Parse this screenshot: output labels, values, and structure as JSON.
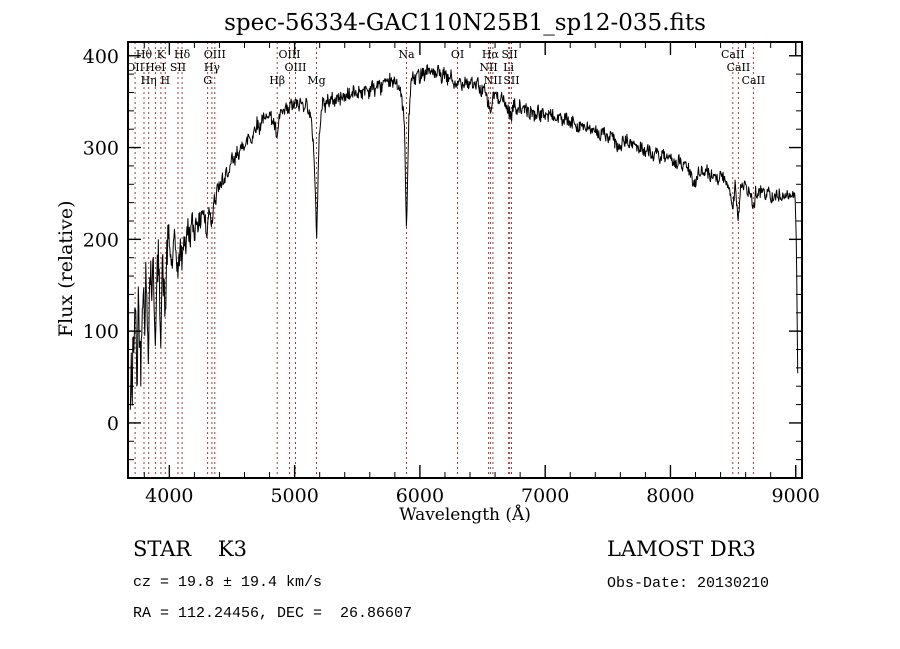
{
  "chart_data": {
    "type": "line",
    "title": "spec-56334-GAC110N25B1_sp12-035.fits",
    "xlabel": "Wavelength (Å)",
    "ylabel": "Flux (relative)",
    "xlim": [
      3670,
      9050
    ],
    "ylim": [
      -60,
      415
    ],
    "xticks": [
      4000,
      5000,
      6000,
      7000,
      8000,
      9000
    ],
    "yticks": [
      0,
      100,
      200,
      300,
      400
    ],
    "x_minor_step": 200,
    "y_minor_step": 20,
    "grid": false,
    "legend": "none",
    "spectrum_color": "#000000",
    "marker_line_color": "#a03c3c",
    "marker_label_color": "#8b2222",
    "render_noise": {
      "seed": 42,
      "step": 4,
      "regions": [
        [
          3670,
          4000,
          22
        ],
        [
          4000,
          4300,
          13
        ],
        [
          4300,
          4700,
          9
        ],
        [
          4700,
          8900,
          7
        ],
        [
          8900,
          9060,
          4
        ]
      ]
    },
    "spectral_lines": [
      {
        "label": "OII",
        "wavelength": 3727,
        "row": 1
      },
      {
        "label": "Hθ",
        "wavelength": 3798,
        "row": 0
      },
      {
        "label": "Hη",
        "wavelength": 3835,
        "row": 2
      },
      {
        "label": "HeI",
        "wavelength": 3889,
        "row": 1
      },
      {
        "label": "K",
        "wavelength": 3933,
        "row": 0
      },
      {
        "label": "H",
        "wavelength": 3968,
        "row": 2
      },
      {
        "label": "SII",
        "wavelength": 4069,
        "row": 1
      },
      {
        "label": "Hδ",
        "wavelength": 4102,
        "row": 0
      },
      {
        "label": "G",
        "wavelength": 4305,
        "row": 2
      },
      {
        "label": "Hγ",
        "wavelength": 4340,
        "row": 1
      },
      {
        "label": "OIII",
        "wavelength": 4363,
        "row": 0
      },
      {
        "label": "Hβ",
        "wavelength": 4861,
        "row": 2
      },
      {
        "label": "OIII",
        "wavelength": 4959,
        "row": 0
      },
      {
        "label": "OIII",
        "wavelength": 5007,
        "row": 1
      },
      {
        "label": "Mg",
        "wavelength": 5175,
        "row": 2
      },
      {
        "label": "Na",
        "wavelength": 5893,
        "row": 0
      },
      {
        "label": "OI",
        "wavelength": 6300,
        "row": 0
      },
      {
        "label": "NII",
        "wavelength": 6548,
        "row": 1
      },
      {
        "label": "Hα",
        "wavelength": 6563,
        "row": 0
      },
      {
        "label": "NII",
        "wavelength": 6583,
        "row": 2
      },
      {
        "label": "Li",
        "wavelength": 6708,
        "row": 1
      },
      {
        "label": "SII",
        "wavelength": 6716,
        "row": 0
      },
      {
        "label": "SII",
        "wavelength": 6731,
        "row": 2
      },
      {
        "label": "CaII",
        "wavelength": 8498,
        "row": 0
      },
      {
        "label": "CaII",
        "wavelength": 8542,
        "row": 1
      },
      {
        "label": "CaII",
        "wavelength": 8662,
        "row": 2
      }
    ],
    "spectrum": [
      [
        3688,
        10
      ],
      [
        3695,
        70
      ],
      [
        3702,
        5
      ],
      [
        3710,
        120
      ],
      [
        3718,
        55
      ],
      [
        3726,
        150
      ],
      [
        3734,
        90
      ],
      [
        3742,
        35
      ],
      [
        3752,
        140
      ],
      [
        3762,
        95
      ],
      [
        3772,
        60
      ],
      [
        3782,
        130
      ],
      [
        3792,
        155
      ],
      [
        3802,
        105
      ],
      [
        3812,
        160
      ],
      [
        3822,
        120
      ],
      [
        3832,
        85
      ],
      [
        3842,
        150
      ],
      [
        3852,
        170
      ],
      [
        3862,
        135
      ],
      [
        3872,
        180
      ],
      [
        3882,
        115
      ],
      [
        3892,
        95
      ],
      [
        3902,
        160
      ],
      [
        3912,
        180
      ],
      [
        3922,
        140
      ],
      [
        3933,
        100
      ],
      [
        3944,
        175
      ],
      [
        3955,
        150
      ],
      [
        3968,
        115
      ],
      [
        3980,
        185
      ],
      [
        3994,
        200
      ],
      [
        4008,
        185
      ],
      [
        4022,
        170
      ],
      [
        4038,
        200
      ],
      [
        4054,
        185
      ],
      [
        4070,
        160
      ],
      [
        4086,
        195
      ],
      [
        4102,
        172
      ],
      [
        4116,
        205
      ],
      [
        4132,
        192
      ],
      [
        4148,
        215
      ],
      [
        4164,
        200
      ],
      [
        4182,
        220
      ],
      [
        4200,
        207
      ],
      [
        4220,
        225
      ],
      [
        4240,
        213
      ],
      [
        4262,
        235
      ],
      [
        4284,
        222
      ],
      [
        4300,
        200
      ],
      [
        4316,
        238
      ],
      [
        4330,
        224
      ],
      [
        4342,
        216
      ],
      [
        4356,
        250
      ],
      [
        4372,
        240
      ],
      [
        4388,
        260
      ],
      [
        4404,
        252
      ],
      [
        4422,
        268
      ],
      [
        4440,
        258
      ],
      [
        4460,
        278
      ],
      [
        4480,
        268
      ],
      [
        4500,
        288
      ],
      [
        4522,
        282
      ],
      [
        4544,
        298
      ],
      [
        4566,
        292
      ],
      [
        4588,
        308
      ],
      [
        4610,
        300
      ],
      [
        4632,
        314
      ],
      [
        4654,
        308
      ],
      [
        4676,
        318
      ],
      [
        4698,
        328
      ],
      [
        4720,
        320
      ],
      [
        4742,
        334
      ],
      [
        4764,
        328
      ],
      [
        4786,
        340
      ],
      [
        4808,
        334
      ],
      [
        4830,
        328
      ],
      [
        4848,
        320
      ],
      [
        4861,
        305
      ],
      [
        4876,
        332
      ],
      [
        4892,
        340
      ],
      [
        4910,
        334
      ],
      [
        4930,
        344
      ],
      [
        4950,
        338
      ],
      [
        4970,
        348
      ],
      [
        4990,
        344
      ],
      [
        5010,
        350
      ],
      [
        5030,
        344
      ],
      [
        5050,
        350
      ],
      [
        5070,
        345
      ],
      [
        5090,
        350
      ],
      [
        5110,
        342
      ],
      [
        5130,
        330
      ],
      [
        5150,
        305
      ],
      [
        5165,
        255
      ],
      [
        5175,
        196
      ],
      [
        5186,
        262
      ],
      [
        5198,
        318
      ],
      [
        5212,
        342
      ],
      [
        5228,
        350
      ],
      [
        5246,
        344
      ],
      [
        5264,
        354
      ],
      [
        5282,
        348
      ],
      [
        5300,
        354
      ],
      [
        5320,
        349
      ],
      [
        5340,
        356
      ],
      [
        5360,
        351
      ],
      [
        5380,
        358
      ],
      [
        5400,
        353
      ],
      [
        5424,
        360
      ],
      [
        5448,
        355
      ],
      [
        5472,
        362
      ],
      [
        5496,
        357
      ],
      [
        5520,
        364
      ],
      [
        5544,
        358
      ],
      [
        5568,
        366
      ],
      [
        5592,
        360
      ],
      [
        5616,
        368
      ],
      [
        5640,
        362
      ],
      [
        5664,
        370
      ],
      [
        5688,
        364
      ],
      [
        5712,
        372
      ],
      [
        5736,
        366
      ],
      [
        5760,
        374
      ],
      [
        5784,
        368
      ],
      [
        5808,
        374
      ],
      [
        5832,
        366
      ],
      [
        5856,
        352
      ],
      [
        5875,
        330
      ],
      [
        5885,
        262
      ],
      [
        5893,
        202
      ],
      [
        5901,
        266
      ],
      [
        5912,
        330
      ],
      [
        5926,
        368
      ],
      [
        5944,
        378
      ],
      [
        5962,
        372
      ],
      [
        5980,
        382
      ],
      [
        6000,
        376
      ],
      [
        6020,
        386
      ],
      [
        6040,
        378
      ],
      [
        6060,
        388
      ],
      [
        6080,
        380
      ],
      [
        6100,
        386
      ],
      [
        6124,
        376
      ],
      [
        6148,
        384
      ],
      [
        6172,
        374
      ],
      [
        6196,
        382
      ],
      [
        6220,
        372
      ],
      [
        6244,
        380
      ],
      [
        6268,
        370
      ],
      [
        6292,
        364
      ],
      [
        6316,
        374
      ],
      [
        6340,
        368
      ],
      [
        6364,
        376
      ],
      [
        6388,
        368
      ],
      [
        6412,
        374
      ],
      [
        6436,
        364
      ],
      [
        6460,
        372
      ],
      [
        6484,
        360
      ],
      [
        6508,
        366
      ],
      [
        6532,
        354
      ],
      [
        6548,
        346
      ],
      [
        6563,
        338
      ],
      [
        6580,
        352
      ],
      [
        6600,
        360
      ],
      [
        6624,
        352
      ],
      [
        6648,
        358
      ],
      [
        6672,
        348
      ],
      [
        6696,
        344
      ],
      [
        6716,
        338
      ],
      [
        6731,
        334
      ],
      [
        6750,
        348
      ],
      [
        6774,
        342
      ],
      [
        6798,
        346
      ],
      [
        6822,
        338
      ],
      [
        6846,
        344
      ],
      [
        6870,
        336
      ],
      [
        6894,
        340
      ],
      [
        6918,
        334
      ],
      [
        6942,
        340
      ],
      [
        6966,
        334
      ],
      [
        6990,
        338
      ],
      [
        7020,
        334
      ],
      [
        7050,
        338
      ],
      [
        7080,
        330
      ],
      [
        7110,
        334
      ],
      [
        7140,
        328
      ],
      [
        7170,
        332
      ],
      [
        7200,
        324
      ],
      [
        7230,
        330
      ],
      [
        7260,
        322
      ],
      [
        7290,
        326
      ],
      [
        7320,
        318
      ],
      [
        7350,
        324
      ],
      [
        7380,
        314
      ],
      [
        7410,
        320
      ],
      [
        7440,
        312
      ],
      [
        7470,
        318
      ],
      [
        7500,
        308
      ],
      [
        7530,
        314
      ],
      [
        7560,
        304
      ],
      [
        7590,
        298
      ],
      [
        7620,
        306
      ],
      [
        7650,
        308
      ],
      [
        7680,
        302
      ],
      [
        7710,
        306
      ],
      [
        7740,
        298
      ],
      [
        7770,
        302
      ],
      [
        7800,
        294
      ],
      [
        7830,
        298
      ],
      [
        7860,
        290
      ],
      [
        7890,
        294
      ],
      [
        7920,
        288
      ],
      [
        7950,
        292
      ],
      [
        7980,
        284
      ],
      [
        8010,
        288
      ],
      [
        8040,
        282
      ],
      [
        8070,
        286
      ],
      [
        8100,
        278
      ],
      [
        8130,
        282
      ],
      [
        8160,
        270
      ],
      [
        8190,
        258
      ],
      [
        8210,
        268
      ],
      [
        8230,
        276
      ],
      [
        8260,
        272
      ],
      [
        8290,
        275
      ],
      [
        8320,
        268
      ],
      [
        8350,
        272
      ],
      [
        8380,
        266
      ],
      [
        8410,
        270
      ],
      [
        8440,
        262
      ],
      [
        8470,
        258
      ],
      [
        8498,
        234
      ],
      [
        8516,
        260
      ],
      [
        8542,
        222
      ],
      [
        8560,
        256
      ],
      [
        8590,
        258
      ],
      [
        8620,
        252
      ],
      [
        8645,
        248
      ],
      [
        8662,
        228
      ],
      [
        8680,
        252
      ],
      [
        8705,
        250
      ],
      [
        8730,
        254
      ],
      [
        8755,
        248
      ],
      [
        8780,
        252
      ],
      [
        8805,
        246
      ],
      [
        8830,
        250
      ],
      [
        8855,
        246
      ],
      [
        8880,
        250
      ],
      [
        8905,
        246
      ],
      [
        8930,
        250
      ],
      [
        8955,
        245
      ],
      [
        8975,
        250
      ],
      [
        8995,
        246
      ],
      [
        9005,
        200
      ],
      [
        9012,
        110
      ],
      [
        9018,
        30
      ]
    ]
  },
  "annotations": {
    "class": "STAR    K3",
    "survey": "LAMOST DR3",
    "cz": "cz = 19.8 ± 19.4 km/s",
    "obs_date": "Obs-Date: 20130210",
    "coords": "RA = 112.24456, DEC =  26.86607"
  }
}
